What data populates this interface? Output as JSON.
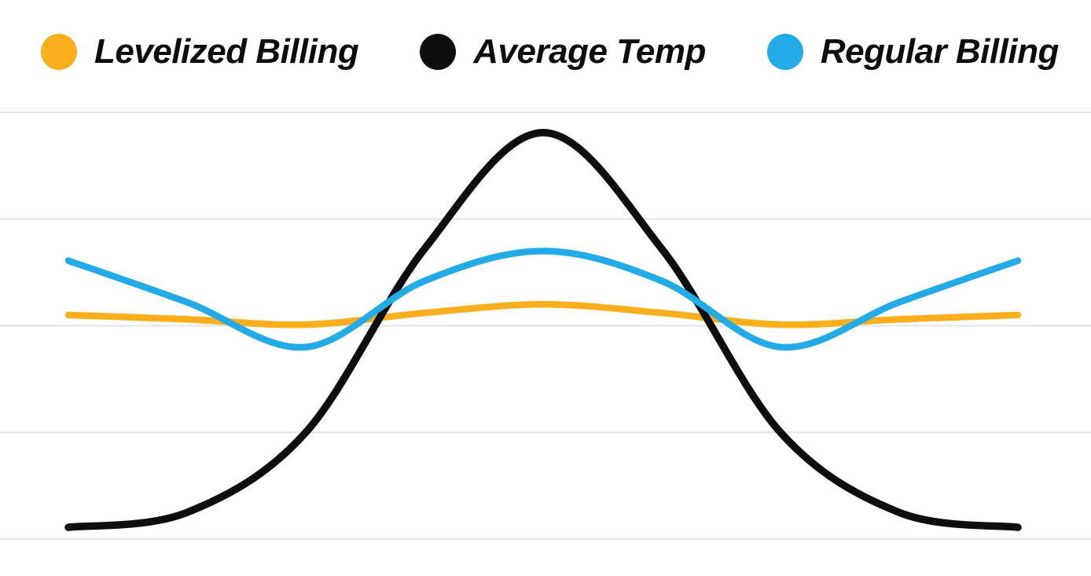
{
  "legend": {
    "items": [
      {
        "label": "Levelized Billing",
        "color": "#FBAE1C",
        "icon": "dot"
      },
      {
        "label": "Average Temp",
        "color": "#0E0E0E",
        "icon": "dot"
      },
      {
        "label": "Regular Billing",
        "color": "#23ABE8",
        "icon": "dot"
      }
    ]
  },
  "chart_data": {
    "type": "line",
    "title": "",
    "xlabel": "",
    "ylabel": "",
    "x": [
      0,
      1.5,
      3,
      4.5,
      6,
      7.5,
      9,
      10.5,
      12
    ],
    "x_range": [
      0,
      12
    ],
    "y_range": [
      1,
      5
    ],
    "axis_tick_labels_visible": false,
    "legend_position": "top",
    "gridlines": {
      "orientation": "horizontal",
      "values": [
        1,
        2,
        3,
        4,
        5
      ],
      "color": "#E4E4E4"
    },
    "series": [
      {
        "name": "Levelized Billing",
        "color": "#FBAE1C",
        "stroke_width": 8.5,
        "values": [
          3.1,
          3.06,
          3.01,
          3.12,
          3.2,
          3.12,
          3.01,
          3.06,
          3.1
        ]
      },
      {
        "name": "Average Temp",
        "color": "#0E0E0E",
        "stroke_width": 9.5,
        "values": [
          1.11,
          1.25,
          2.0,
          3.72,
          4.81,
          3.72,
          2.0,
          1.25,
          1.11
        ]
      },
      {
        "name": "Regular Billing",
        "color": "#23ABE8",
        "stroke_width": 8.5,
        "values": [
          3.61,
          3.22,
          2.8,
          3.42,
          3.7,
          3.42,
          2.8,
          3.22,
          3.61
        ]
      }
    ],
    "draw_order": [
      "Levelized Billing",
      "Average Temp",
      "Regular Billing"
    ]
  }
}
